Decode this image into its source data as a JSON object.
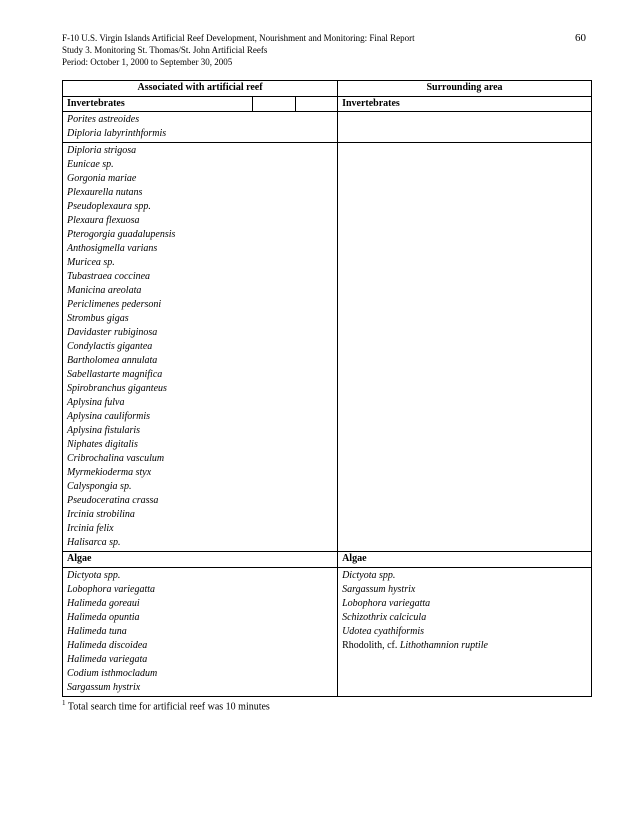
{
  "header": {
    "line1": "F-10 U.S. Virgin Islands Artificial Reef Development, Nourishment and Monitoring: Final Report",
    "line2": "Study 3.  Monitoring St. Thomas/St. John Artificial Reefs",
    "line3": "Period:  October 1, 2000 to September 30, 2005",
    "page": "60"
  },
  "table": {
    "col1_header": "Associated with artificial reef",
    "col2_header": "Surrounding area",
    "section_inv": "Invertebrates",
    "inv_block1": [
      "Porites astreoides",
      "Diploria labyrinthformis"
    ],
    "inv_block2": [
      "Diploria strigosa",
      "Eunicae sp.",
      "Gorgonia mariae",
      "Plexaurella nutans",
      "Pseudoplexaura spp.",
      "Plexaura flexuosa",
      "Pterogorgia guadalupensis",
      "Anthosigmella varians",
      "Muricea sp.",
      "Tubastraea coccinea",
      "Manicina areolata",
      "Periclimenes pedersoni",
      "Strombus gigas",
      "Davidaster rubiginosa",
      "Condylactis gigantea",
      "Bartholomea annulata",
      "Sabellastarte magnifica",
      "Spirobranchus giganteus",
      "Aplysina fulva",
      "Aplysina cauliformis",
      "Aplysina fistularis",
      "Niphates digitalis",
      "Cribrochalina vasculum",
      "Myrmekioderma styx",
      "Calyspongia sp.",
      "Pseudoceratina crassa",
      "Ircinia strobilina",
      "Ircinia felix",
      "Halisarca sp."
    ],
    "section_algae": "Algae",
    "algae_left": [
      "Dictyota spp.",
      "Lobophora variegatta",
      "Halimeda goreaui",
      "Halimeda opuntia",
      "Halimeda tuna",
      "Halimeda discoidea",
      "Halimeda variegata",
      "Codium isthmocladum",
      "Sargassum hystrix"
    ],
    "algae_right": [
      {
        "text": "Dictyota spp.",
        "italic": true
      },
      {
        "text": "Sargassum hystrix",
        "italic": true
      },
      {
        "text": "Lobophora variegatta",
        "italic": true
      },
      {
        "text": "Schizothrix calcicula",
        "italic": true
      },
      {
        "text": "Udotea cyathiformis",
        "italic": true
      },
      {
        "prefix": "Rhodolith, cf. ",
        "text": "Lithothamnion ruptile",
        "italic": true
      }
    ]
  },
  "footnote": "Total search time for artificial reef was 10 minutes"
}
